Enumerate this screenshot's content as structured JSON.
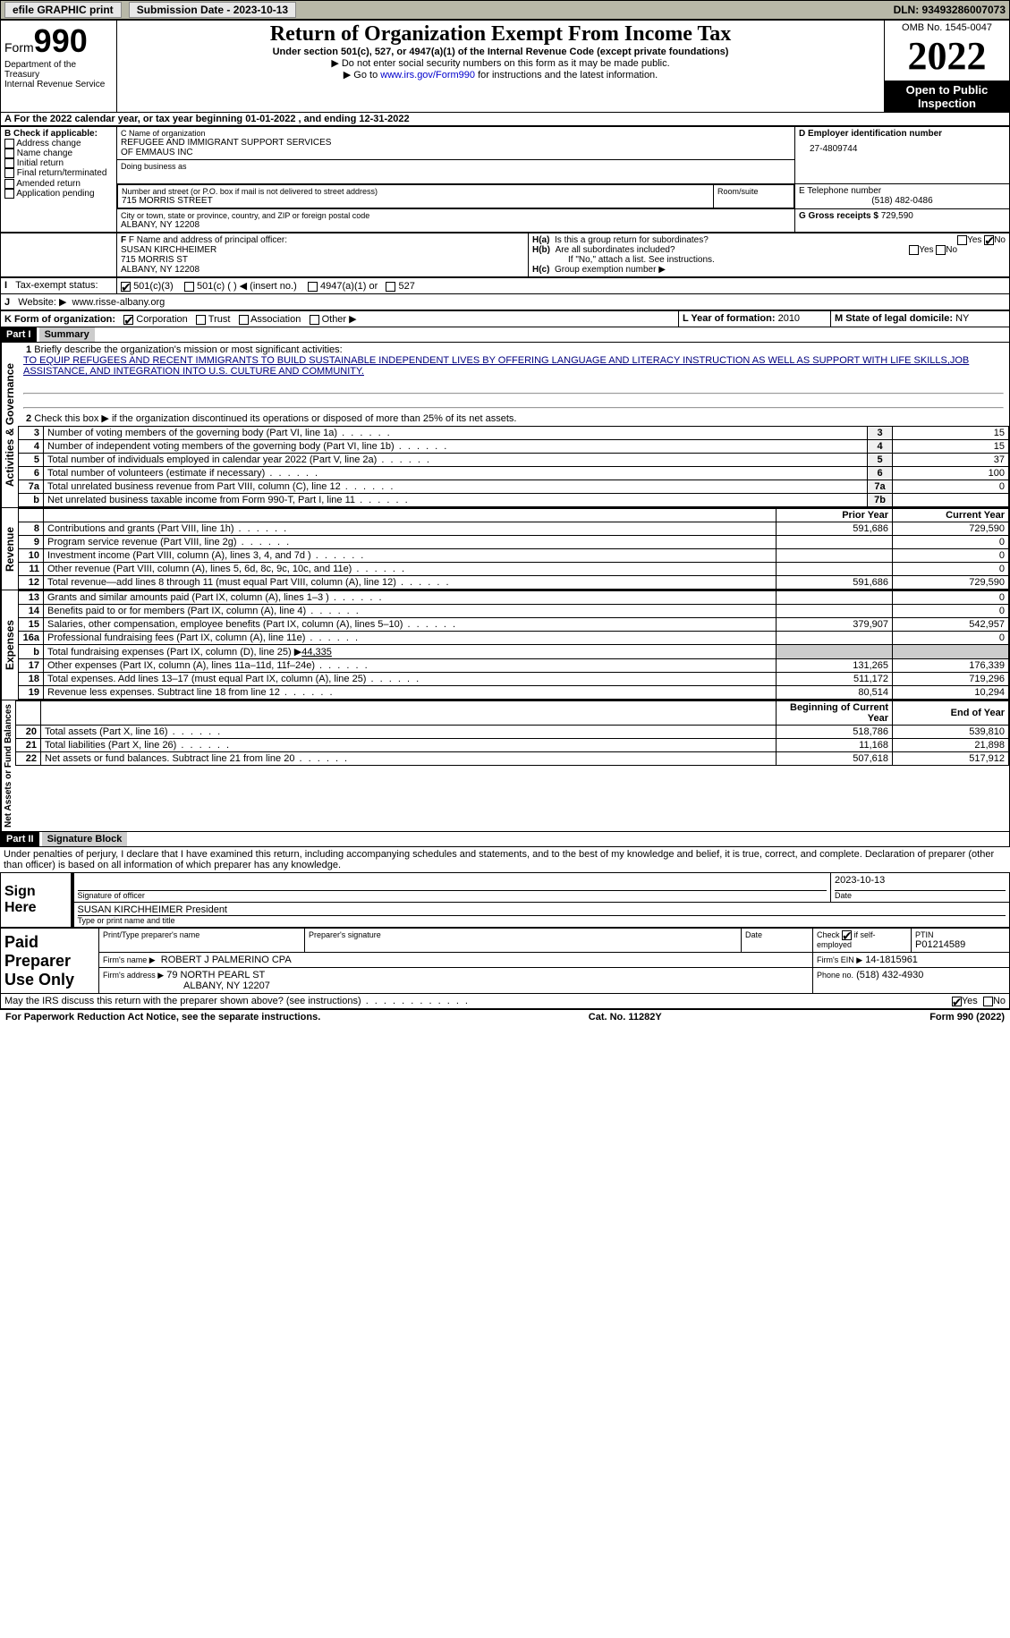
{
  "topbar": {
    "efile": "efile GRAPHIC print",
    "sub_label": "Submission Date - 2023-10-13",
    "dln": "DLN: 93493286007073"
  },
  "header": {
    "form_label": "Form",
    "form_number": "990",
    "dept": "Department of the Treasury",
    "irs": "Internal Revenue Service",
    "title": "Return of Organization Exempt From Income Tax",
    "subtitle": "Under section 501(c), 527, or 4947(a)(1) of the Internal Revenue Code (except private foundations)",
    "note1": "▶ Do not enter social security numbers on this form as it may be made public.",
    "note2_pre": "▶ Go to ",
    "note2_link": "www.irs.gov/Form990",
    "note2_post": " for instructions and the latest information.",
    "omb": "OMB No. 1545-0047",
    "year": "2022",
    "inspect": "Open to Public Inspection"
  },
  "periodA": "A For the 2022 calendar year, or tax year beginning 01-01-2022    , and ending 12-31-2022",
  "boxB": {
    "title": "B Check if applicable:",
    "items": [
      "Address change",
      "Name change",
      "Initial return",
      "Final return/terminated",
      "Amended return",
      "Application pending"
    ]
  },
  "boxC": {
    "name_label": "C Name of organization",
    "name1": "REFUGEE AND IMMIGRANT SUPPORT SERVICES",
    "name2": "OF EMMAUS INC",
    "dba_label": "Doing business as",
    "addr_label": "Number and street (or P.O. box if mail is not delivered to street address)",
    "room_label": "Room/suite",
    "addr": "715 MORRIS STREET",
    "city_label": "City or town, state or province, country, and ZIP or foreign postal code",
    "city": "ALBANY, NY  12208"
  },
  "boxD": {
    "label": "D Employer identification number",
    "value": "27-4809744"
  },
  "boxE": {
    "label": "E Telephone number",
    "value": "(518) 482-0486"
  },
  "boxG": {
    "label": "G Gross receipts $",
    "value": "729,590"
  },
  "boxF": {
    "label": "F Name and address of principal officer:",
    "name": "SUSAN KIRCHHEIMER",
    "addr1": "715 MORRIS ST",
    "addr2": "ALBANY, NY  12208"
  },
  "boxH": {
    "a": "Is this a group return for subordinates?",
    "b": "Are all subordinates included?",
    "note": "If \"No,\" attach a list. See instructions.",
    "c": "Group exemption number ▶",
    "yes": "Yes",
    "no": "No"
  },
  "taxI": {
    "label": "Tax-exempt status:",
    "opts": [
      "501(c)(3)",
      "501(c) (  ) ◀ (insert no.)",
      "4947(a)(1) or",
      "527"
    ]
  },
  "taxJ": {
    "label": "Website: ▶",
    "value": "www.risse-albany.org"
  },
  "taxK": {
    "label": "K Form of organization:",
    "opts": [
      "Corporation",
      "Trust",
      "Association",
      "Other ▶"
    ]
  },
  "taxL": {
    "label": "L Year of formation:",
    "value": "2010"
  },
  "taxM": {
    "label": "M State of legal domicile:",
    "value": "NY"
  },
  "part1": {
    "hdr": "Part I",
    "title": "Summary",
    "line1_label": "Briefly describe the organization's mission or most significant activities:",
    "mission": "TO EQUIP REFUGEES AND RECENT IMMIGRANTS TO BUILD SUSTAINABLE INDEPENDENT LIVES BY OFFERING LANGUAGE AND LITERACY INSTRUCTION AS WELL AS SUPPORT WITH LIFE SKILLS,JOB ASSISTANCE, AND INTEGRATION INTO U.S. CULTURE AND COMMUNITY.",
    "line2": "Check this box ▶     if the organization discontinued its operations or disposed of more than 25% of its net assets.",
    "gov_label": "Activities & Governance",
    "rev_label": "Revenue",
    "exp_label": "Expenses",
    "net_label": "Net Assets or Fund Balances",
    "lines_gov": [
      {
        "n": "3",
        "d": "Number of voting members of the governing body (Part VI, line 1a)",
        "ln": "3",
        "v": "15"
      },
      {
        "n": "4",
        "d": "Number of independent voting members of the governing body (Part VI, line 1b)",
        "ln": "4",
        "v": "15"
      },
      {
        "n": "5",
        "d": "Total number of individuals employed in calendar year 2022 (Part V, line 2a)",
        "ln": "5",
        "v": "37"
      },
      {
        "n": "6",
        "d": "Total number of volunteers (estimate if necessary)",
        "ln": "6",
        "v": "100"
      },
      {
        "n": "7a",
        "d": "Total unrelated business revenue from Part VIII, column (C), line 12",
        "ln": "7a",
        "v": "0"
      },
      {
        "n": "b",
        "d": "Net unrelated business taxable income from Form 990-T, Part I, line 11",
        "ln": "7b",
        "v": ""
      }
    ],
    "col_prior": "Prior Year",
    "col_current": "Current Year",
    "lines_rev": [
      {
        "n": "8",
        "d": "Contributions and grants (Part VIII, line 1h)",
        "p": "591,686",
        "c": "729,590"
      },
      {
        "n": "9",
        "d": "Program service revenue (Part VIII, line 2g)",
        "p": "",
        "c": "0"
      },
      {
        "n": "10",
        "d": "Investment income (Part VIII, column (A), lines 3, 4, and 7d )",
        "p": "",
        "c": "0"
      },
      {
        "n": "11",
        "d": "Other revenue (Part VIII, column (A), lines 5, 6d, 8c, 9c, 10c, and 11e)",
        "p": "",
        "c": "0"
      },
      {
        "n": "12",
        "d": "Total revenue—add lines 8 through 11 (must equal Part VIII, column (A), line 12)",
        "p": "591,686",
        "c": "729,590"
      }
    ],
    "lines_exp": [
      {
        "n": "13",
        "d": "Grants and similar amounts paid (Part IX, column (A), lines 1–3 )",
        "p": "",
        "c": "0"
      },
      {
        "n": "14",
        "d": "Benefits paid to or for members (Part IX, column (A), line 4)",
        "p": "",
        "c": "0"
      },
      {
        "n": "15",
        "d": "Salaries, other compensation, employee benefits (Part IX, column (A), lines 5–10)",
        "p": "379,907",
        "c": "542,957"
      },
      {
        "n": "16a",
        "d": "Professional fundraising fees (Part IX, column (A), line 11e)",
        "p": "",
        "c": "0"
      }
    ],
    "line16b": {
      "n": "b",
      "d": "Total fundraising expenses (Part IX, column (D), line 25) ▶",
      "v": "44,335"
    },
    "lines_exp2": [
      {
        "n": "17",
        "d": "Other expenses (Part IX, column (A), lines 11a–11d, 11f–24e)",
        "p": "131,265",
        "c": "176,339"
      },
      {
        "n": "18",
        "d": "Total expenses. Add lines 13–17 (must equal Part IX, column (A), line 25)",
        "p": "511,172",
        "c": "719,296"
      },
      {
        "n": "19",
        "d": "Revenue less expenses. Subtract line 18 from line 12",
        "p": "80,514",
        "c": "10,294"
      }
    ],
    "col_begin": "Beginning of Current Year",
    "col_end": "End of Year",
    "lines_net": [
      {
        "n": "20",
        "d": "Total assets (Part X, line 16)",
        "p": "518,786",
        "c": "539,810"
      },
      {
        "n": "21",
        "d": "Total liabilities (Part X, line 26)",
        "p": "11,168",
        "c": "21,898"
      },
      {
        "n": "22",
        "d": "Net assets or fund balances. Subtract line 21 from line 20",
        "p": "507,618",
        "c": "517,912"
      }
    ]
  },
  "part2": {
    "hdr": "Part II",
    "title": "Signature Block",
    "decl": "Under penalties of perjury, I declare that I have examined this return, including accompanying schedules and statements, and to the best of my knowledge and belief, it is true, correct, and complete. Declaration of preparer (other than officer) is based on all information of which preparer has any knowledge.",
    "sign_here": "Sign Here",
    "sig_officer": "Signature of officer",
    "sig_date": "2023-10-13",
    "date_label": "Date",
    "officer_name": "SUSAN KIRCHHEIMER  President",
    "type_name": "Type or print name and title",
    "paid": "Paid Preparer Use Only",
    "prep_name_label": "Print/Type preparer's name",
    "prep_sig_label": "Preparer's signature",
    "check_self": "Check       if self-employed",
    "ptin_label": "PTIN",
    "ptin": "P01214589",
    "firm_name_label": "Firm's name    ▶",
    "firm_name": "ROBERT J PALMERINO CPA",
    "firm_ein_label": "Firm's EIN ▶",
    "firm_ein": "14-1815961",
    "firm_addr_label": "Firm's address ▶",
    "firm_addr1": "79 NORTH PEARL ST",
    "firm_addr2": "ALBANY, NY  12207",
    "phone_label": "Phone no.",
    "phone": "(518) 432-4930",
    "discuss": "May the IRS discuss this return with the preparer shown above? (see instructions)",
    "yes": "Yes",
    "no": "No"
  },
  "footer": {
    "left": "For Paperwork Reduction Act Notice, see the separate instructions.",
    "mid": "Cat. No. 11282Y",
    "right": "Form 990 (2022)"
  }
}
